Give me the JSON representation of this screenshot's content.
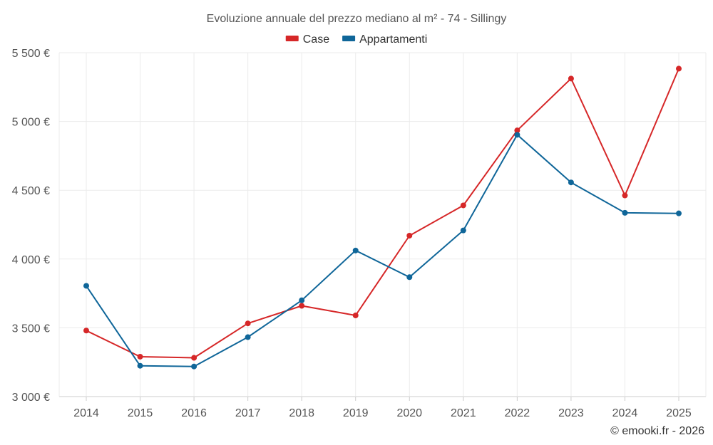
{
  "chart_data": {
    "type": "line",
    "title": "Evoluzione annuale del prezzo mediano al m² - 74 - Sillingy",
    "categories": [
      "2014",
      "2015",
      "2016",
      "2017",
      "2018",
      "2019",
      "2020",
      "2021",
      "2022",
      "2023",
      "2024",
      "2025"
    ],
    "series": [
      {
        "name": "Case",
        "color": "#d62728",
        "values": [
          3480,
          3290,
          3282,
          3532,
          3660,
          3590,
          4170,
          4390,
          4935,
          5312,
          4462,
          5384
        ]
      },
      {
        "name": "Appartamenti",
        "color": "#0f6699",
        "values": [
          3805,
          3224,
          3219,
          3432,
          3700,
          4062,
          3868,
          4208,
          4903,
          4557,
          4336,
          4332
        ]
      }
    ],
    "ylim": [
      3000,
      5500
    ],
    "yticks": [
      3000,
      3500,
      4000,
      4500,
      5000,
      5500
    ],
    "ytick_labels": [
      "3 000 €",
      "3 500 €",
      "4 000 €",
      "4 500 €",
      "5 000 €",
      "5 500 €"
    ],
    "grid": true,
    "legend_position": "top-center",
    "xlabel": "",
    "ylabel": ""
  },
  "credit": "© emooki.fr - 2026"
}
